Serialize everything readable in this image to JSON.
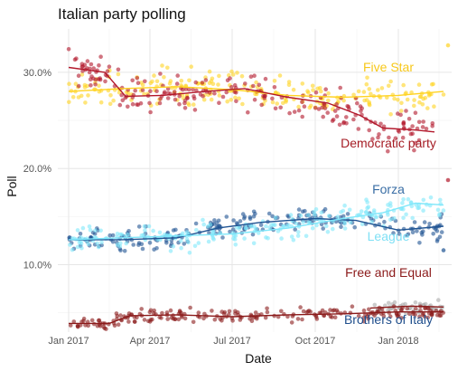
{
  "chart_data": {
    "type": "scatter",
    "title": "Italian party polling",
    "xlabel": "Date",
    "ylabel": "Poll",
    "x_ticks": [
      "Jan 2017",
      "Apr 2017",
      "Jul 2017",
      "Oct 2017",
      "Jan 2018"
    ],
    "x_tick_dates": [
      "2017-01-01",
      "2017-04-01",
      "2017-07-01",
      "2017-10-01",
      "2018-01-01"
    ],
    "xlim": [
      "2016-12-20",
      "2018-03-01"
    ],
    "y_ticks": [
      "10.0%",
      "20.0%",
      "30.0%"
    ],
    "y_tick_values": [
      10,
      20,
      30
    ],
    "ylim": [
      3,
      34.5
    ],
    "y_unit": "percent",
    "grid": true,
    "legend": "direct labels at right of each series",
    "series": [
      {
        "name": "Five Star",
        "color": "#FFD322",
        "label_color": "#F7C81B",
        "trend": [
          [
            "2017-01-01",
            28.0
          ],
          [
            "2017-03-01",
            28.3
          ],
          [
            "2017-05-01",
            28.5
          ],
          [
            "2017-07-01",
            28.2
          ],
          [
            "2017-09-01",
            27.6
          ],
          [
            "2017-11-01",
            27.4
          ],
          [
            "2018-01-01",
            27.6
          ],
          [
            "2018-02-20",
            28.0
          ]
        ],
        "spread": 1.6
      },
      {
        "name": "Democratic party",
        "color": "#B2182B",
        "label_color": "#A51C24",
        "trend": [
          [
            "2017-01-01",
            30.5
          ],
          [
            "2017-02-10",
            30.0
          ],
          [
            "2017-03-05",
            27.5
          ],
          [
            "2017-04-15",
            27.6
          ],
          [
            "2017-06-01",
            28.0
          ],
          [
            "2017-07-15",
            28.3
          ],
          [
            "2017-09-01",
            27.4
          ],
          [
            "2017-10-15",
            26.8
          ],
          [
            "2017-11-20",
            25.5
          ],
          [
            "2017-12-15",
            24.2
          ],
          [
            "2018-01-20",
            24.0
          ],
          [
            "2018-02-10",
            23.8
          ]
        ],
        "spread": 1.7
      },
      {
        "name": "Forza",
        "color": "#205493",
        "label_color": "#3A6EA5",
        "trend": [
          [
            "2017-01-01",
            12.6
          ],
          [
            "2017-03-01",
            12.6
          ],
          [
            "2017-05-01",
            12.8
          ],
          [
            "2017-06-15",
            13.8
          ],
          [
            "2017-08-01",
            14.4
          ],
          [
            "2017-10-01",
            14.8
          ],
          [
            "2017-11-15",
            14.6
          ],
          [
            "2018-01-01",
            13.6
          ],
          [
            "2018-02-20",
            14.0
          ]
        ],
        "spread": 1.0
      },
      {
        "name": "League",
        "color": "#7FE7FA",
        "label_color": "#7FE0F5",
        "trend": [
          [
            "2017-01-01",
            12.6
          ],
          [
            "2017-03-01",
            12.8
          ],
          [
            "2017-05-01",
            13.0
          ],
          [
            "2017-07-01",
            13.2
          ],
          [
            "2017-09-01",
            13.8
          ],
          [
            "2017-11-01",
            14.8
          ],
          [
            "2017-12-15",
            15.4
          ],
          [
            "2018-01-20",
            16.4
          ],
          [
            "2018-02-20",
            16.2
          ]
        ],
        "spread": 1.1
      },
      {
        "name": "Free and Equal",
        "color": "#AAAAAA",
        "label_color": "#8B1A1A",
        "trend": [
          [
            "2017-12-01",
            5.5
          ],
          [
            "2018-01-15",
            5.7
          ],
          [
            "2018-02-20",
            5.6
          ]
        ],
        "spread": 0.6
      },
      {
        "name": "Brothers of Italy",
        "color": "#8B1A1A",
        "label_color": "#1F4E8C",
        "trend": [
          [
            "2017-01-01",
            3.9
          ],
          [
            "2017-02-15",
            3.9
          ],
          [
            "2017-03-10",
            4.7
          ],
          [
            "2017-05-01",
            4.8
          ],
          [
            "2017-07-01",
            4.6
          ],
          [
            "2017-09-01",
            4.8
          ],
          [
            "2017-11-01",
            4.9
          ],
          [
            "2018-01-01",
            5.1
          ],
          [
            "2018-02-20",
            5.1
          ]
        ],
        "spread": 0.6
      }
    ],
    "outliers": [
      {
        "x": "2018-02-25",
        "y": 32.8,
        "color": "#FFD322"
      },
      {
        "x": "2018-02-25",
        "y": 18.8,
        "color": "#B2182B"
      },
      {
        "x": "2018-02-20",
        "y": 11.5,
        "color": "#205493"
      }
    ]
  }
}
